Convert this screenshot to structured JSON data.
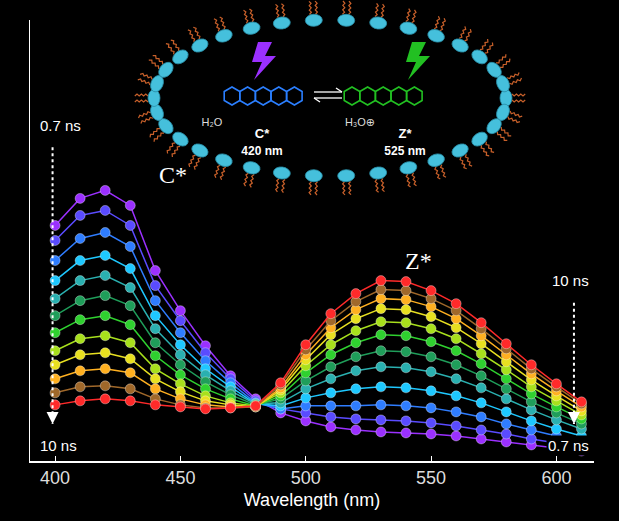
{
  "chart_data": {
    "type": "line",
    "x_label": "Wavelength (nm)",
    "x": [
      400,
      410,
      420,
      430,
      440,
      450,
      460,
      470,
      480,
      490,
      500,
      510,
      520,
      530,
      540,
      550,
      560,
      570,
      580,
      590,
      600,
      610
    ],
    "xlim": [
      390,
      615
    ],
    "xticks": [
      400,
      450,
      500,
      550,
      600
    ],
    "ylim": [
      0,
      440
    ],
    "tick_labels": "x",
    "grid": false,
    "marker": "circle",
    "line_style": "solid",
    "series": [
      {
        "color": "#9b30ff",
        "values": [
          235,
          262,
          270,
          255,
          190,
          150,
          115,
          85,
          62,
          48,
          40,
          34,
          31,
          29,
          28,
          27,
          25,
          22,
          19,
          16,
          13,
          10
        ]
      },
      {
        "color": "#5a4bff",
        "values": [
          220,
          245,
          250,
          235,
          175,
          140,
          108,
          82,
          60,
          52,
          48,
          44,
          42,
          41,
          40,
          38,
          35,
          31,
          27,
          22,
          18,
          14
        ]
      },
      {
        "color": "#2f7dff",
        "values": [
          200,
          222,
          228,
          214,
          160,
          128,
          100,
          78,
          58,
          52,
          55,
          55,
          55,
          56,
          55,
          53,
          49,
          44,
          37,
          31,
          25,
          19
        ]
      },
      {
        "color": "#1ec8ff",
        "values": [
          180,
          200,
          205,
          192,
          145,
          116,
          92,
          74,
          57,
          55,
          63,
          68,
          72,
          74,
          73,
          70,
          65,
          58,
          49,
          40,
          32,
          25
        ]
      },
      {
        "color": "#2ab0b0",
        "values": [
          162,
          180,
          185,
          173,
          132,
          106,
          86,
          70,
          57,
          58,
          72,
          82,
          90,
          94,
          93,
          89,
          82,
          73,
          62,
          51,
          41,
          32
        ]
      },
      {
        "color": "#1f9e5a",
        "values": [
          145,
          160,
          165,
          155,
          118,
          96,
          79,
          66,
          56,
          62,
          80,
          94,
          104,
          110,
          109,
          104,
          96,
          85,
          72,
          59,
          48,
          37
        ]
      },
      {
        "color": "#2fd12f",
        "values": [
          128,
          141,
          145,
          136,
          105,
          86,
          72,
          62,
          55,
          65,
          88,
          106,
          118,
          126,
          125,
          119,
          110,
          97,
          82,
          67,
          54,
          42
        ]
      },
      {
        "color": "#a8e01c",
        "values": [
          110,
          122,
          125,
          118,
          92,
          77,
          65,
          58,
          55,
          68,
          95,
          116,
          130,
          139,
          138,
          132,
          122,
          107,
          91,
          74,
          60,
          46
        ]
      },
      {
        "color": "#e8e020",
        "values": [
          96,
          106,
          108,
          102,
          82,
          69,
          60,
          56,
          54,
          71,
          101,
          126,
          142,
          152,
          151,
          144,
          133,
          117,
          99,
          81,
          65,
          50
        ]
      },
      {
        "color": "#ffb020",
        "values": [
          82,
          90,
          92,
          88,
          72,
          62,
          56,
          54,
          54,
          73,
          106,
          133,
          151,
          162,
          161,
          154,
          142,
          125,
          106,
          87,
          70,
          54
        ]
      },
      {
        "color": "#a0682a",
        "values": [
          68,
          74,
          75,
          72,
          62,
          56,
          53,
          53,
          54,
          76,
          111,
          140,
          159,
          171,
          170,
          162,
          150,
          132,
          112,
          92,
          74,
          57
        ]
      },
      {
        "color": "#ff2a2a",
        "values": [
          56,
          60,
          62,
          60,
          56,
          54,
          52,
          53,
          55,
          78,
          116,
          147,
          167,
          180,
          179,
          170,
          157,
          138,
          117,
          96,
          77,
          59
        ]
      }
    ],
    "annotations": [
      {
        "text": "C*",
        "x": 447,
        "y": 285
      },
      {
        "text": "Z*",
        "x": 545,
        "y": 200
      },
      {
        "text": "0.7 ns",
        "x": 393,
        "y": 335
      },
      {
        "text": "10 ns",
        "x": 393,
        "y": 15
      },
      {
        "text": "10 ns",
        "x": 614,
        "y": 180
      },
      {
        "text": "0.7 ns",
        "x": 614,
        "y": 15
      }
    ]
  },
  "inset": {
    "left_species": "C*",
    "left_wavelength": "420 nm",
    "left_solvent": "H₂O",
    "right_species": "Z*",
    "right_wavelength": "525 nm",
    "right_solvent": "H₃O⊕"
  }
}
